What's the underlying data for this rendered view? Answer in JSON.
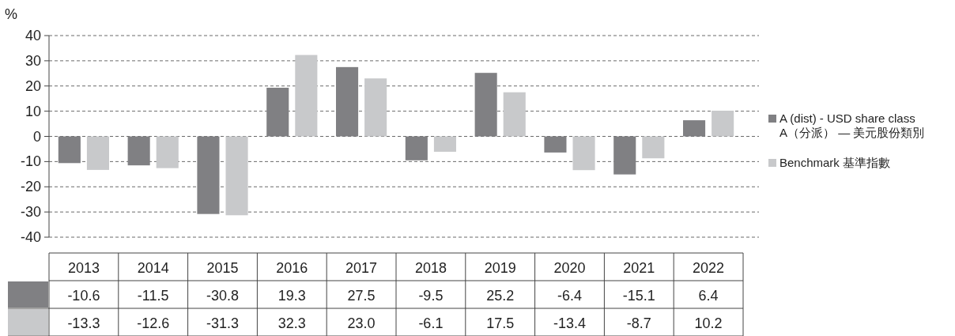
{
  "chart_data": {
    "type": "bar",
    "ylabel": "%",
    "categories": [
      "2013",
      "2014",
      "2015",
      "2016",
      "2017",
      "2018",
      "2019",
      "2020",
      "2021",
      "2022"
    ],
    "series": [
      {
        "name": "A (dist) - USD share class\nA（分派） — 美元股份類別",
        "color": "#808083",
        "values": [
          -10.6,
          -11.5,
          -30.8,
          19.3,
          27.5,
          -9.5,
          25.2,
          -6.4,
          -15.1,
          6.4
        ]
      },
      {
        "name": "Benchmark 基準指數",
        "color": "#c8c9cb",
        "values": [
          -13.3,
          -12.6,
          -31.3,
          32.3,
          23.0,
          -6.1,
          17.5,
          -13.4,
          -8.7,
          10.2
        ]
      }
    ],
    "value_labels": [
      [
        "-10.6",
        "-11.5",
        "-30.8",
        "19.3",
        "27.5",
        "-9.5",
        "25.2",
        "-6.4",
        "-15.1",
        "6.4"
      ],
      [
        "-13.3",
        "-12.6",
        "-31.3",
        "32.3",
        "23.0",
        "-6.1",
        "17.5",
        "-13.4",
        "-8.7",
        "10.2"
      ]
    ],
    "ylim": [
      -40,
      40
    ],
    "yticks": [
      -40,
      -30,
      -20,
      -10,
      0,
      10,
      20,
      30,
      40
    ],
    "grid": "y",
    "legend": "right"
  }
}
